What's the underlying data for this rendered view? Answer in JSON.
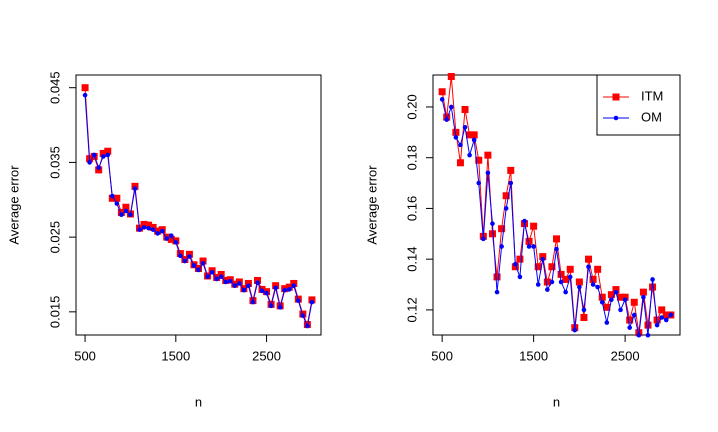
{
  "chart_data": [
    {
      "type": "line",
      "xlabel": "n",
      "ylabel": "Average error",
      "x": [
        500,
        550,
        600,
        650,
        700,
        750,
        800,
        850,
        900,
        950,
        1000,
        1050,
        1100,
        1150,
        1200,
        1250,
        1300,
        1350,
        1400,
        1450,
        1500,
        1550,
        1600,
        1650,
        1700,
        1750,
        1800,
        1850,
        1900,
        1950,
        2000,
        2050,
        2100,
        2150,
        2200,
        2250,
        2300,
        2350,
        2400,
        2450,
        2500,
        2550,
        2600,
        2650,
        2700,
        2750,
        2800,
        2850,
        2900,
        2950,
        3000
      ],
      "xlim": [
        400,
        3100
      ],
      "xticks": [
        500,
        1500,
        2500
      ],
      "ylim": [
        0.0119,
        0.0467
      ],
      "yticks": [
        0.015,
        0.025,
        0.035,
        0.045
      ],
      "series": [
        {
          "color": "#ff0000",
          "marker": "square",
          "values": [
            0.045,
            0.0355,
            0.0358,
            0.034,
            0.0362,
            0.0365,
            0.0302,
            0.0302,
            0.0283,
            0.029,
            0.0281,
            0.0318,
            0.0262,
            0.0267,
            0.0266,
            0.0263,
            0.0258,
            0.026,
            0.025,
            0.0247,
            0.0245,
            0.0228,
            0.022,
            0.0227,
            0.0213,
            0.0208,
            0.0218,
            0.0198,
            0.0205,
            0.0196,
            0.02,
            0.0192,
            0.0193,
            0.0187,
            0.019,
            0.0181,
            0.0188,
            0.0165,
            0.0192,
            0.018,
            0.0177,
            0.016,
            0.0185,
            0.0158,
            0.0181,
            0.0183,
            0.0188,
            0.0167,
            0.0147,
            0.0133,
            0.0166
          ]
        },
        {
          "color": "#0000ff",
          "marker": "dot",
          "values": [
            0.044,
            0.035,
            0.036,
            0.0343,
            0.0358,
            0.036,
            0.0305,
            0.0295,
            0.028,
            0.0285,
            0.028,
            0.0315,
            0.026,
            0.0263,
            0.0262,
            0.026,
            0.0255,
            0.0258,
            0.0248,
            0.0252,
            0.0243,
            0.0225,
            0.0218,
            0.0224,
            0.0212,
            0.0206,
            0.0215,
            0.0197,
            0.0203,
            0.0194,
            0.0197,
            0.019,
            0.0191,
            0.0185,
            0.0188,
            0.0179,
            0.0185,
            0.0163,
            0.0189,
            0.0178,
            0.0175,
            0.0158,
            0.0182,
            0.0156,
            0.0179,
            0.018,
            0.0185,
            0.0165,
            0.0145,
            0.0131,
            0.0163
          ]
        }
      ]
    },
    {
      "type": "line",
      "xlabel": "n",
      "ylabel": "Average error",
      "legend": "topright",
      "x": [
        500,
        550,
        600,
        650,
        700,
        750,
        800,
        850,
        900,
        950,
        1000,
        1050,
        1100,
        1150,
        1200,
        1250,
        1300,
        1350,
        1400,
        1450,
        1500,
        1550,
        1600,
        1650,
        1700,
        1750,
        1800,
        1850,
        1900,
        1950,
        2000,
        2050,
        2100,
        2150,
        2200,
        2250,
        2300,
        2350,
        2400,
        2450,
        2500,
        2550,
        2600,
        2650,
        2700,
        2750,
        2800,
        2850,
        2900,
        2950,
        3000
      ],
      "xlim": [
        400,
        3100
      ],
      "xticks": [
        500,
        1500,
        2500
      ],
      "ylim": [
        0.1101,
        0.2126
      ],
      "yticks": [
        0.12,
        0.14,
        0.16,
        0.18,
        {
          "value": 0.2,
          "label": "0.20"
        }
      ],
      "series": [
        {
          "name": "ITM",
          "color": "#ff0000",
          "marker": "square",
          "values": [
            0.206,
            0.196,
            0.212,
            0.19,
            0.178,
            0.199,
            0.189,
            0.189,
            0.179,
            0.149,
            0.181,
            0.15,
            0.133,
            0.152,
            0.165,
            0.175,
            0.137,
            0.14,
            0.154,
            0.147,
            0.153,
            0.137,
            0.141,
            0.131,
            0.137,
            0.148,
            0.134,
            0.132,
            0.136,
            0.113,
            0.131,
            0.117,
            0.14,
            0.132,
            0.136,
            0.125,
            0.121,
            0.126,
            0.128,
            0.125,
            0.125,
            0.116,
            0.123,
            0.111,
            0.127,
            0.114,
            0.129,
            0.116,
            0.12,
            0.118,
            0.118
          ]
        },
        {
          "name": "OM",
          "color": "#0000ff",
          "marker": "dot",
          "values": [
            0.203,
            0.195,
            0.2,
            0.188,
            0.185,
            0.192,
            0.181,
            0.187,
            0.17,
            0.148,
            0.174,
            0.154,
            0.127,
            0.145,
            0.16,
            0.17,
            0.138,
            0.133,
            0.155,
            0.145,
            0.145,
            0.13,
            0.14,
            0.128,
            0.131,
            0.144,
            0.131,
            0.127,
            0.133,
            0.112,
            0.129,
            0.12,
            0.137,
            0.13,
            0.129,
            0.123,
            0.115,
            0.124,
            0.127,
            0.12,
            0.124,
            0.113,
            0.118,
            0.11,
            0.125,
            0.11,
            0.132,
            0.114,
            0.117,
            0.116,
            0.118
          ]
        }
      ]
    }
  ]
}
